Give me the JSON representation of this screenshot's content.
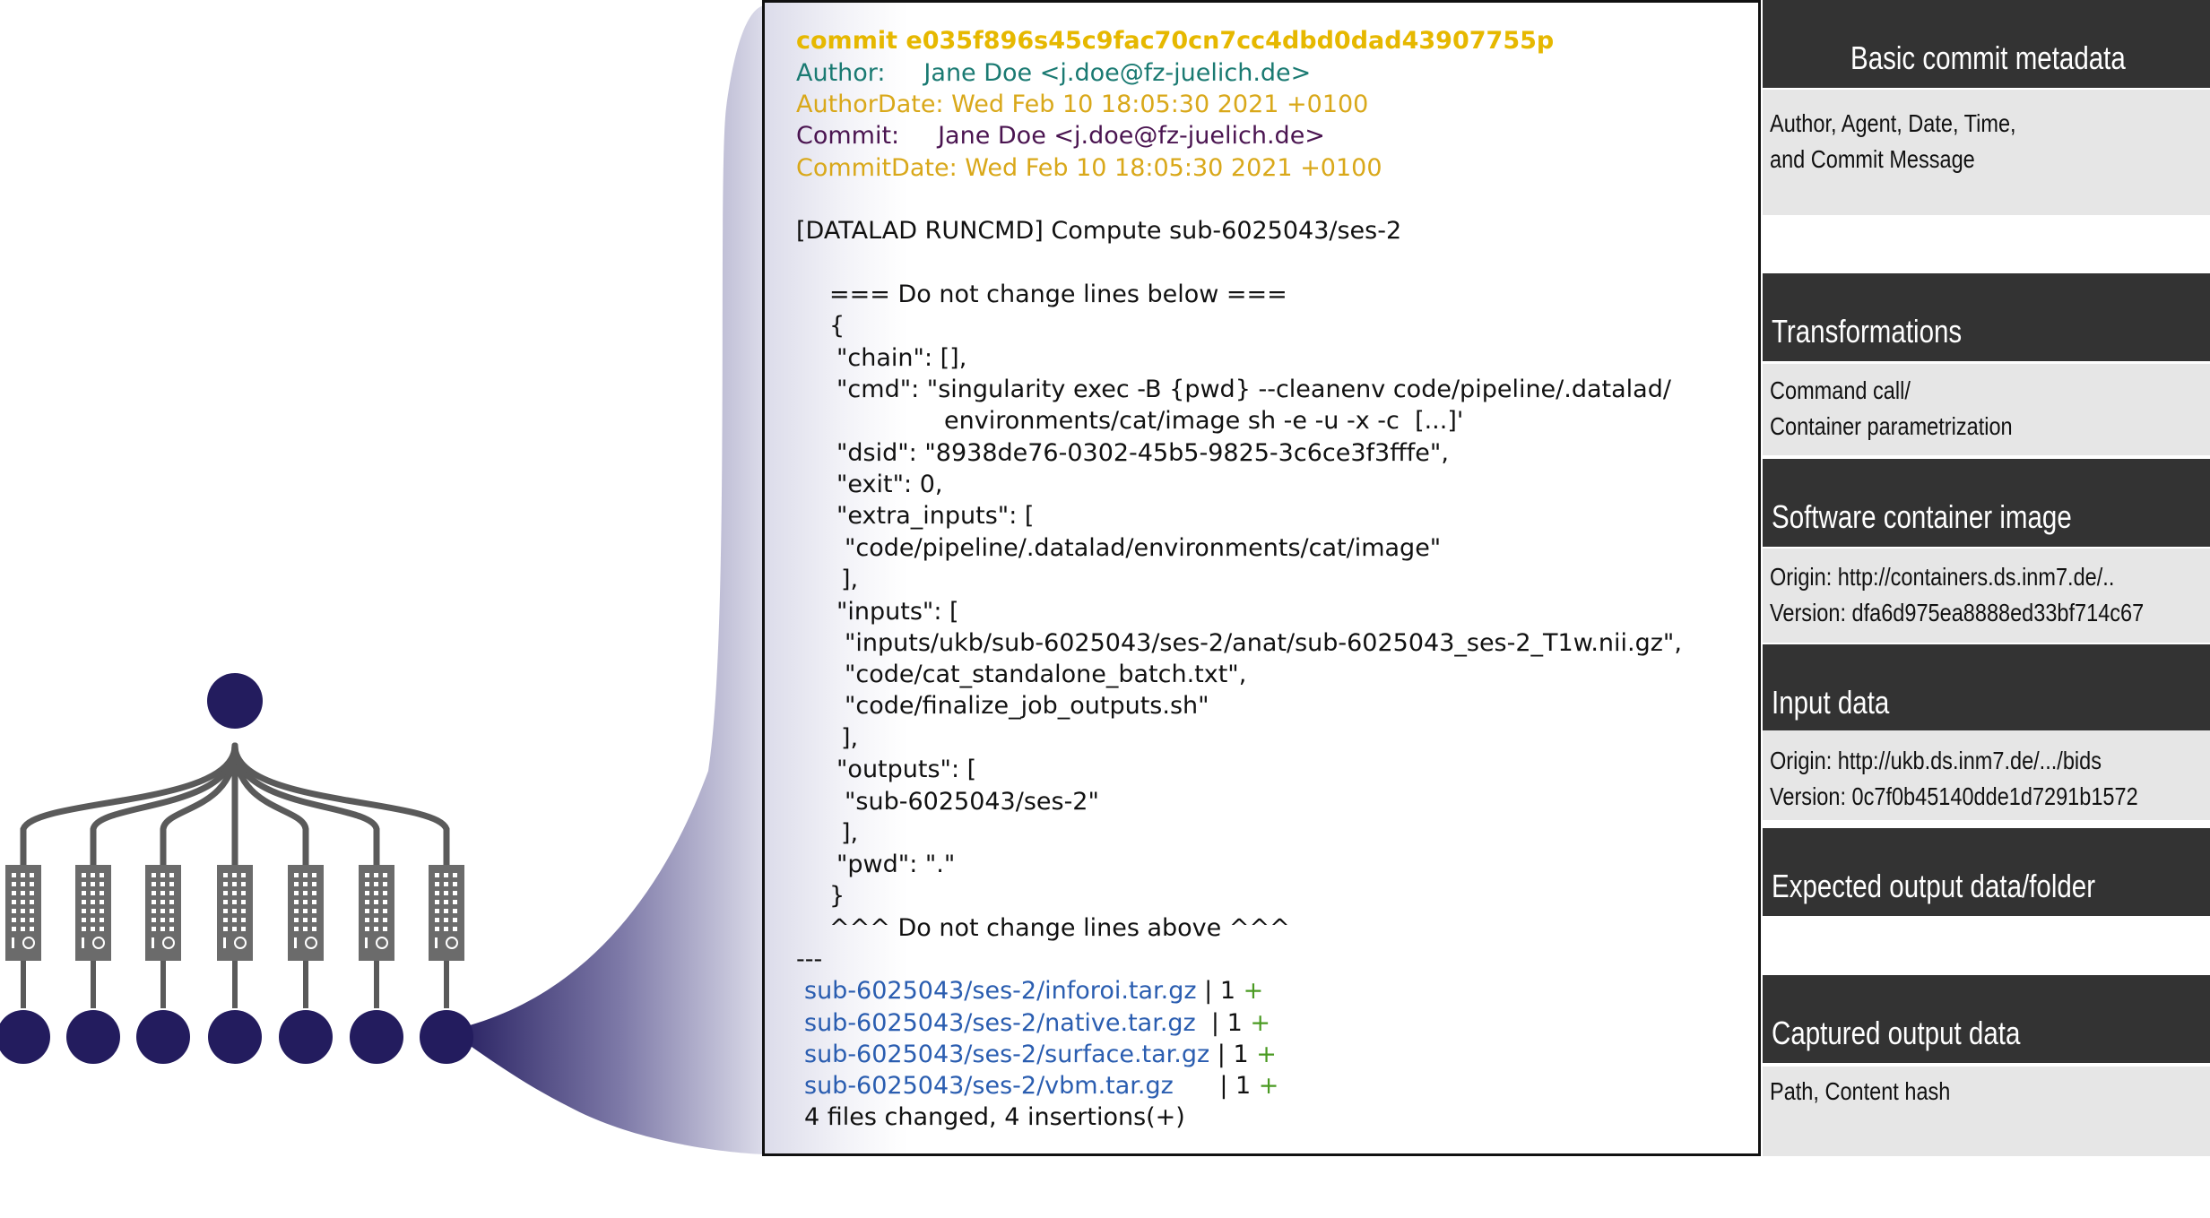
{
  "commit": {
    "lines": [
      {
        "text": "commit e035f896s45c9fac70cn7cc4dbd0dad43907755p",
        "style": "hash"
      },
      {
        "text": "Author:     Jane Doe <j.doe@fz-juelich.de>",
        "style": "teal"
      },
      {
        "text": "AuthorDate: Wed Feb 10 18:05:30 2021 +0100",
        "style": "gold"
      },
      {
        "text": "Commit:     Jane Doe <j.doe@fz-juelich.de>",
        "style": "purp"
      },
      {
        "text": "CommitDate: Wed Feb 10 18:05:30 2021 +0100",
        "style": "gold"
      },
      {
        "text": "[DATALAD RUNCMD] Compute sub-6025043/ses-2",
        "style": "plain"
      },
      {
        "text": "=== Do not change lines below ===",
        "style": "plain"
      },
      {
        "text": "{",
        "style": "plain"
      },
      {
        "text": "\"chain\": [],",
        "style": "plain"
      },
      {
        "text": "\"cmd\": \"singularity exec -B {pwd} --cleanenv code/pipeline/.datalad/",
        "style": "plain"
      },
      {
        "text": "environments/cat/image sh -e -u -x -c  [...]'",
        "style": "plain"
      },
      {
        "text": "\"dsid\": \"8938de76-0302-45b5-9825-3c6ce3f3fffe\",",
        "style": "plain"
      },
      {
        "text": "\"exit\": 0,",
        "style": "plain"
      },
      {
        "text": "\"extra_inputs\": [",
        "style": "plain"
      },
      {
        "text": "\"code/pipeline/.datalad/environments/cat/image\"",
        "style": "plain"
      },
      {
        "text": "],",
        "style": "plain"
      },
      {
        "text": "\"inputs\": [",
        "style": "plain"
      },
      {
        "text": "\"inputs/ukb/sub-6025043/ses-2/anat/sub-6025043_ses-2_T1w.nii.gz\",",
        "style": "plain"
      },
      {
        "text": "\"code/cat_standalone_batch.txt\",",
        "style": "plain"
      },
      {
        "text": "\"code/finalize_job_outputs.sh\"",
        "style": "plain"
      },
      {
        "text": "],",
        "style": "plain"
      },
      {
        "text": "\"outputs\": [",
        "style": "plain"
      },
      {
        "text": "\"sub-6025043/ses-2\"",
        "style": "plain"
      },
      {
        "text": "],",
        "style": "plain"
      },
      {
        "text": "\"pwd\": \".\"",
        "style": "plain"
      },
      {
        "text": "}",
        "style": "plain"
      },
      {
        "text": "^^^ Do not change lines above ^^^",
        "style": "plain"
      },
      {
        "text": "---",
        "style": "plain"
      }
    ],
    "files": [
      {
        "path": "sub-6025043/ses-2/inforoi.tar.gz",
        "sep": " | 1 ",
        "plus": "+"
      },
      {
        "path": "sub-6025043/ses-2/native.tar.gz",
        "sep": "  | 1 ",
        "plus": "+"
      },
      {
        "path": "sub-6025043/ses-2/surface.tar.gz",
        "sep": " | 1 ",
        "plus": "+"
      },
      {
        "path": "sub-6025043/ses-2/vbm.tar.gz",
        "sep": "      | 1 ",
        "plus": "+"
      }
    ],
    "summary": "4 files changed, 4 insertions(+)"
  },
  "sections": [
    {
      "title": "Basic commit metadata",
      "icon": "user-clock-icon",
      "lines": [
        "Author, Agent, Date, Time,",
        "and Commit Message"
      ]
    },
    {
      "title": "Transformations",
      "lines": [
        "Command call/",
        "Container parametrization"
      ]
    },
    {
      "title": "Software container image",
      "lines": [
        "Origin: http://containers.ds.inm7.de/..",
        "Version: dfa6d975ea8888ed33bf714c67"
      ]
    },
    {
      "title": "Input data",
      "lines": [
        "Origin: http://ukb.ds.inm7.de/.../bids",
        "Version: 0c7f0b45140dde1d7291b1572"
      ]
    },
    {
      "title": "Expected output data/folder",
      "lines": []
    },
    {
      "title": "Captured output data",
      "lines": [
        "Path, Content hash"
      ]
    }
  ],
  "colors": {
    "node": "#231c5e",
    "server": "#6b6b6b",
    "edge": "#5a5a5a",
    "header_bg": "#333333",
    "body_bg": "#e6e6e6"
  }
}
